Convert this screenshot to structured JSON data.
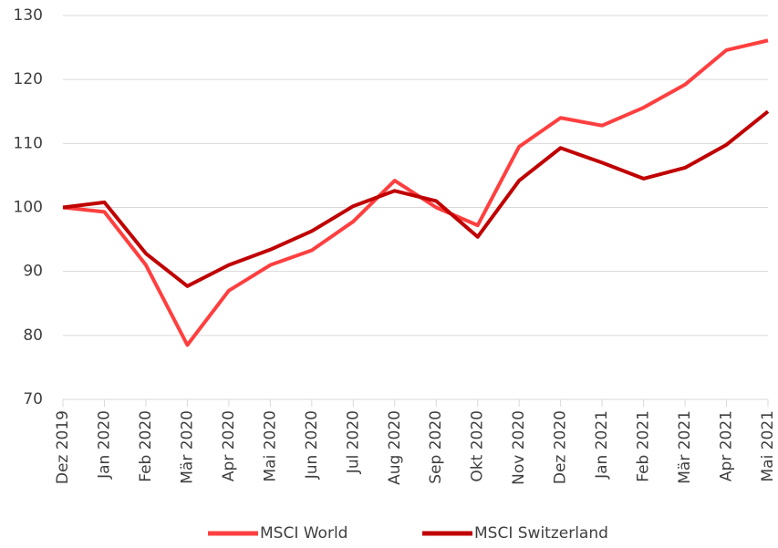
{
  "chart_data": {
    "type": "line",
    "categories": [
      "Dez 2019",
      "Jan 2020",
      "Feb 2020",
      "Mär 2020",
      "Apr 2020",
      "Mai 2020",
      "Jun 2020",
      "Jul 2020",
      "Aug 2020",
      "Sep 2020",
      "Okt 2020",
      "Nov 2020",
      "Dez 2020",
      "Jan 2021",
      "Feb 2021",
      "Mär 2021",
      "Apr 2021",
      "Mai 2021"
    ],
    "series": [
      {
        "name": "MSCI World",
        "color": "#ff3f3f",
        "values": [
          100,
          99.3,
          91,
          78.5,
          87,
          91,
          93.3,
          97.8,
          104.2,
          100,
          97.2,
          109.5,
          114,
          112.8,
          115.6,
          119.2,
          124.6,
          126.1
        ]
      },
      {
        "name": "MSCI Switzerland",
        "color": "#c00000",
        "values": [
          100,
          100.8,
          92.8,
          87.7,
          91,
          93.4,
          96.3,
          100.2,
          102.6,
          101,
          95.4,
          104.2,
          109.3,
          107,
          104.5,
          106.2,
          109.8,
          115
        ]
      }
    ],
    "ylim": [
      70,
      130
    ],
    "yticks": [
      70,
      80,
      90,
      100,
      110,
      120,
      130
    ],
    "grid": true,
    "legend": "bottom"
  }
}
